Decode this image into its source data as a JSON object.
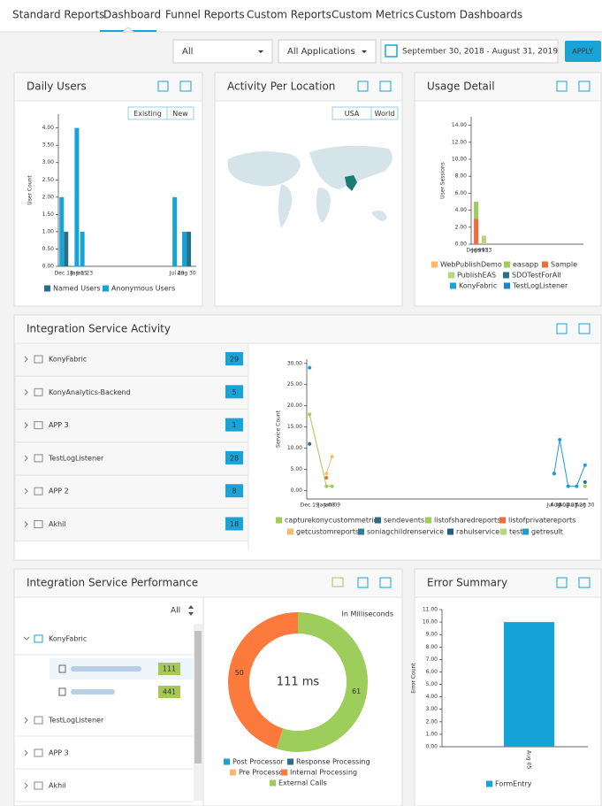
{
  "nav": {
    "tabs": [
      "Standard Reports",
      "Dashboard",
      "Funnel Reports",
      "Custom Reports",
      "Custom Metrics",
      "Custom Dashboards"
    ],
    "active": 1
  },
  "filters": {
    "platform": "All",
    "applications": "All Applications",
    "date_range": "September 30, 2018 - August 31, 2019",
    "apply": "APPLY"
  },
  "daily_users": {
    "title": "Daily Users",
    "toggles": [
      "Existing",
      "New"
    ],
    "chart": {
      "type": "bar",
      "y_label": "User Count",
      "categories": [
        "Dec 18",
        "Jan 15",
        "Jan 23",
        "Jul 29",
        "Aug 30"
      ],
      "ylim": [
        0,
        4.4
      ],
      "yticks": [
        {
          "value": 0,
          "label": "0.00"
        },
        {
          "value": 0.5,
          "label": "0.50"
        },
        {
          "value": 1,
          "label": "1.00"
        },
        {
          "value": 1.5,
          "label": "1.50"
        },
        {
          "value": 2,
          "label": "2.00"
        },
        {
          "value": 2.5,
          "label": "2.50"
        },
        {
          "value": 3,
          "label": "3.00"
        },
        {
          "value": 3.5,
          "label": "3.50"
        },
        {
          "value": 4,
          "label": "4.00"
        }
      ],
      "series": [
        {
          "name": "Named Users",
          "color": "#2a6f89",
          "values": [
            1,
            null,
            null,
            null,
            1
          ]
        },
        {
          "name": "Anonymous Users",
          "color": "#16a4d8",
          "values": [
            2,
            4,
            1,
            2,
            1
          ]
        }
      ]
    }
  },
  "activity_location": {
    "title": "Activity Per Location",
    "toggles": [
      "USA",
      "World"
    ]
  },
  "usage_detail": {
    "title": "Usage Detail",
    "chart": {
      "type": "stacked_bar",
      "y_label": "User Sessions",
      "categories": [
        "Dec 19",
        "Jan 15",
        "Jan 23"
      ],
      "ylim": [
        0,
        15
      ],
      "yticks": [
        {
          "value": 0,
          "label": "0.00"
        },
        {
          "value": 2,
          "label": "2.00"
        },
        {
          "value": 4,
          "label": "4.00"
        },
        {
          "value": 6,
          "label": "6.00"
        },
        {
          "value": 8,
          "label": "8.00"
        },
        {
          "value": 10,
          "label": "10.00"
        },
        {
          "value": 12,
          "label": "12.00"
        },
        {
          "value": 14,
          "label": "14.00"
        }
      ],
      "series": [
        {
          "name": "WebPublishDemo",
          "color": "#f7bb6b"
        },
        {
          "name": "easapp",
          "color": "#9dcd5b",
          "values": [
            2,
            null,
            null
          ]
        },
        {
          "name": "Sample",
          "color": "#f26b3a",
          "values": [
            3,
            null,
            null
          ]
        },
        {
          "name": "PublishEAS",
          "color": "#b3d97a",
          "values": [
            null,
            null,
            1
          ]
        },
        {
          "name": "SDOTestForAll",
          "color": "#2a6f89"
        },
        {
          "name": "KonyFabric",
          "color": "#16a4d8"
        },
        {
          "name": "TestLogListener",
          "color": "#1a86c9"
        }
      ]
    }
  },
  "service_activity": {
    "title": "Integration Service Activity",
    "services": [
      {
        "name": "KonyFabric",
        "count": 29
      },
      {
        "name": "KonyAnalytics-Backend",
        "count": 5
      },
      {
        "name": "APP 3",
        "count": 1
      },
      {
        "name": "TestLogListener",
        "count": 28
      },
      {
        "name": "APP 2",
        "count": 8
      },
      {
        "name": "Akhil",
        "count": 18
      }
    ],
    "chart": {
      "type": "line",
      "y_label": "Service Count",
      "categories": [
        "Dec 19",
        "Jan 08",
        "Jan 09",
        "Jul 30",
        "Aug 02",
        "Aug 23",
        "Aug 26",
        "Aug 30"
      ],
      "ylim": [
        -2,
        31
      ],
      "yticks": [
        {
          "value": 0,
          "label": "0.00"
        },
        {
          "value": 5,
          "label": "5.00"
        },
        {
          "value": 10,
          "label": "10.00"
        },
        {
          "value": 15,
          "label": "15.00"
        },
        {
          "value": 20,
          "label": "20.00"
        },
        {
          "value": 25,
          "label": "25.00"
        },
        {
          "value": 30,
          "label": "30.00"
        }
      ],
      "series": [
        {
          "name": "capturekonycustommetrics",
          "color": "#a5c957",
          "values": [
            18,
            1,
            null,
            null,
            null,
            null,
            null,
            1
          ]
        },
        {
          "name": "sendevents",
          "color": "#2a6f89",
          "values": [
            11,
            null,
            null,
            4,
            null,
            null,
            null,
            2
          ]
        },
        {
          "name": "listofsharedreports",
          "color": "#9dcd5b",
          "values": [
            null,
            1,
            1,
            null,
            null,
            null,
            null,
            null
          ]
        },
        {
          "name": "listofprivatereports",
          "color": "#f26b3a",
          "values": [
            null,
            3,
            null,
            null,
            null,
            null,
            null,
            null
          ]
        },
        {
          "name": "getcustomreports",
          "color": "#f7bb6b",
          "values": [
            null,
            4,
            8,
            null,
            null,
            null,
            null,
            null
          ]
        },
        {
          "name": "soniagchildrenservice",
          "color": "#2e7d9a"
        },
        {
          "name": "rahulservice",
          "color": "#1f5f8b"
        },
        {
          "name": "test",
          "color": "#b3d97a"
        },
        {
          "name": "getresult",
          "color": "#1a9be0",
          "values": [
            29,
            null,
            null,
            4,
            12,
            1,
            1,
            6
          ]
        }
      ]
    }
  },
  "service_performance": {
    "title": "Integration Service Performance",
    "filter": "All",
    "tree": [
      {
        "name": "KonyFabric",
        "children": [
          111,
          441
        ]
      },
      {
        "name": "TestLogListener"
      },
      {
        "name": "APP 3"
      },
      {
        "name": "Akhil"
      }
    ],
    "chart": {
      "type": "donut",
      "unit_note": "In Milliseconds",
      "center_label": "111 ms",
      "series": [
        {
          "name": "Post Processor",
          "color": "#16a4d8"
        },
        {
          "name": "Response Processing",
          "color": "#2a6f89"
        },
        {
          "name": "Pre Processor",
          "color": "#f7bb6b"
        },
        {
          "name": "Internal Processing",
          "color": "#fb7a3c",
          "value": 50
        },
        {
          "name": "External Calls",
          "color": "#9dcd5b",
          "value": 61
        }
      ]
    }
  },
  "error_summary": {
    "title": "Error Summary",
    "chart": {
      "type": "bar",
      "y_label": "Error Count",
      "categories": [
        "Aug 05"
      ],
      "ylim": [
        0,
        11
      ],
      "yticks": [
        {
          "value": 0,
          "label": "0.00"
        },
        {
          "value": 1,
          "label": "1.00"
        },
        {
          "value": 2,
          "label": "2.00"
        },
        {
          "value": 3,
          "label": "3.00"
        },
        {
          "value": 4,
          "label": "4.00"
        },
        {
          "value": 5,
          "label": "5.00"
        },
        {
          "value": 6,
          "label": "6.00"
        },
        {
          "value": 7,
          "label": "7.00"
        },
        {
          "value": 8,
          "label": "8.00"
        },
        {
          "value": 9,
          "label": "9.00"
        },
        {
          "value": 10,
          "label": "10.00"
        },
        {
          "value": 11,
          "label": "11.00"
        }
      ],
      "series": [
        {
          "name": "FormEntry",
          "color": "#16a4d8",
          "values": [
            10
          ]
        }
      ]
    }
  }
}
